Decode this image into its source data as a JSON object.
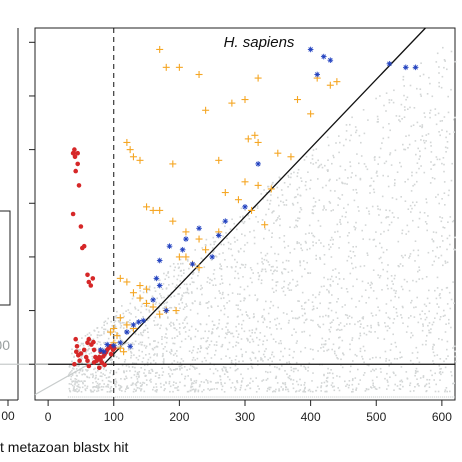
{
  "chart_data": [
    {
      "type": "scatter",
      "panel": "left (partially visible)",
      "x_tick_labels": [
        "00"
      ],
      "y_reference_label": "00"
    },
    {
      "type": "scatter",
      "title": "H. sapiens",
      "xlabel": "t metazoan blastx hit",
      "ylabel": "",
      "xlim": [
        -20,
        620
      ],
      "ylim": [
        -100,
        940
      ],
      "x_ticks": [
        0,
        100,
        200,
        300,
        400,
        500,
        600
      ],
      "y_ticks": [
        0,
        150,
        300,
        450,
        600,
        750,
        900
      ],
      "grid": false,
      "reference_lines": [
        {
          "kind": "vertical",
          "style": "dashed",
          "x": 100
        },
        {
          "kind": "horizontal",
          "style": "solid",
          "y": 0
        },
        {
          "kind": "diagonal",
          "style": "solid",
          "description": "y = x (bits), black"
        },
        {
          "kind": "diagonal",
          "style": "solid",
          "description": "background reference, light grey"
        }
      ],
      "series": [
        {
          "marker": "dot",
          "color": "#d62728",
          "points": [
            [
              38,
              590
            ],
            [
              38,
              420
            ],
            [
              39,
              590
            ],
            [
              40,
              600
            ],
            [
              41,
              580
            ],
            [
              42,
              540
            ],
            [
              45,
              560
            ],
            [
              45,
              590
            ],
            [
              47,
              500
            ],
            [
              50,
              385
            ],
            [
              52,
              325
            ],
            [
              55,
              330
            ],
            [
              60,
              250
            ],
            [
              62,
              230
            ],
            [
              65,
              220
            ],
            [
              68,
              240
            ],
            [
              60,
              60
            ],
            [
              62,
              70
            ],
            [
              66,
              55
            ],
            [
              69,
              62
            ],
            [
              70,
              40
            ],
            [
              72,
              20
            ],
            [
              74,
              10
            ],
            [
              76,
              15
            ],
            [
              78,
              20
            ],
            [
              80,
              35
            ],
            [
              84,
              22
            ],
            [
              86,
              28
            ],
            [
              88,
              34
            ],
            [
              90,
              40
            ],
            [
              92,
              45
            ],
            [
              95,
              50
            ],
            [
              70,
              5
            ],
            [
              78,
              -10
            ],
            [
              82,
              4
            ],
            [
              50,
              30
            ],
            [
              55,
              40
            ],
            [
              58,
              20
            ],
            [
              60,
              10
            ],
            [
              62,
              -5
            ],
            [
              42,
              70
            ],
            [
              44,
              50
            ],
            [
              46,
              25
            ],
            [
              48,
              10
            ],
            [
              40,
              0
            ],
            [
              43,
              35
            ],
            [
              98,
              46
            ],
            [
              99,
              40
            ],
            [
              101,
              45
            ],
            [
              96,
              28
            ],
            [
              86,
              -2
            ],
            [
              80,
              12
            ]
          ]
        },
        {
          "marker": "cross",
          "color": "#f5a623",
          "points": [
            [
              170,
              880
            ],
            [
              180,
              830
            ],
            [
              200,
              830
            ],
            [
              230,
              810
            ],
            [
              320,
              800
            ],
            [
              410,
              800
            ],
            [
              430,
              780
            ],
            [
              440,
              790
            ],
            [
              240,
              710
            ],
            [
              305,
              630
            ],
            [
              315,
              640
            ],
            [
              320,
              620
            ],
            [
              120,
              620
            ],
            [
              125,
              600
            ],
            [
              130,
              580
            ],
            [
              140,
              570
            ],
            [
              280,
              730
            ],
            [
              300,
              740
            ],
            [
              380,
              740
            ],
            [
              400,
              700
            ],
            [
              350,
              590
            ],
            [
              370,
              580
            ],
            [
              260,
              570
            ],
            [
              190,
              560
            ],
            [
              300,
              510
            ],
            [
              320,
              500
            ],
            [
              340,
              490
            ],
            [
              270,
              480
            ],
            [
              290,
              460
            ],
            [
              310,
              430
            ],
            [
              150,
              440
            ],
            [
              160,
              430
            ],
            [
              170,
              430
            ],
            [
              190,
              400
            ],
            [
              210,
              370
            ],
            [
              230,
              350
            ],
            [
              240,
              320
            ],
            [
              200,
              300
            ],
            [
              210,
              300
            ],
            [
              220,
              280
            ],
            [
              230,
              270
            ],
            [
              110,
              240
            ],
            [
              120,
              230
            ],
            [
              140,
              220
            ],
            [
              150,
              210
            ],
            [
              130,
              200
            ],
            [
              140,
              185
            ],
            [
              150,
              170
            ],
            [
              160,
              160
            ],
            [
              180,
              150
            ],
            [
              195,
              150
            ],
            [
              170,
              140
            ],
            [
              110,
              130
            ],
            [
              120,
              110
            ],
            [
              130,
              100
            ],
            [
              100,
              100
            ],
            [
              105,
              80
            ],
            [
              95,
              90
            ],
            [
              100,
              60
            ],
            [
              110,
              45
            ],
            [
              115,
              35
            ],
            [
              260,
              370
            ],
            [
              330,
              390
            ]
          ]
        },
        {
          "marker": "asterisk",
          "color": "#1f3fbf",
          "points": [
            [
              400,
              880
            ],
            [
              520,
              840
            ],
            [
              430,
              850
            ],
            [
              545,
              830
            ],
            [
              560,
              830
            ],
            [
              420,
              860
            ],
            [
              410,
              810
            ],
            [
              320,
              560
            ],
            [
              300,
              440
            ],
            [
              260,
              360
            ],
            [
              250,
              300
            ],
            [
              220,
              280
            ],
            [
              205,
              320
            ],
            [
              165,
              240
            ],
            [
              170,
              220
            ],
            [
              160,
              180
            ],
            [
              180,
              150
            ],
            [
              130,
              110
            ],
            [
              120,
              90
            ],
            [
              110,
              60
            ],
            [
              125,
              50
            ],
            [
              80,
              40
            ],
            [
              85,
              35
            ],
            [
              90,
              55
            ],
            [
              100,
              52
            ],
            [
              138,
              118
            ],
            [
              145,
              122
            ],
            [
              270,
              400
            ],
            [
              230,
              380
            ],
            [
              210,
              350
            ],
            [
              185,
              330
            ],
            [
              170,
              290
            ]
          ]
        },
        {
          "marker": "dot",
          "color": "#d3d6d6",
          "description": "dense background cloud below the y = x line, x roughly 30–620"
        }
      ]
    }
  ]
}
